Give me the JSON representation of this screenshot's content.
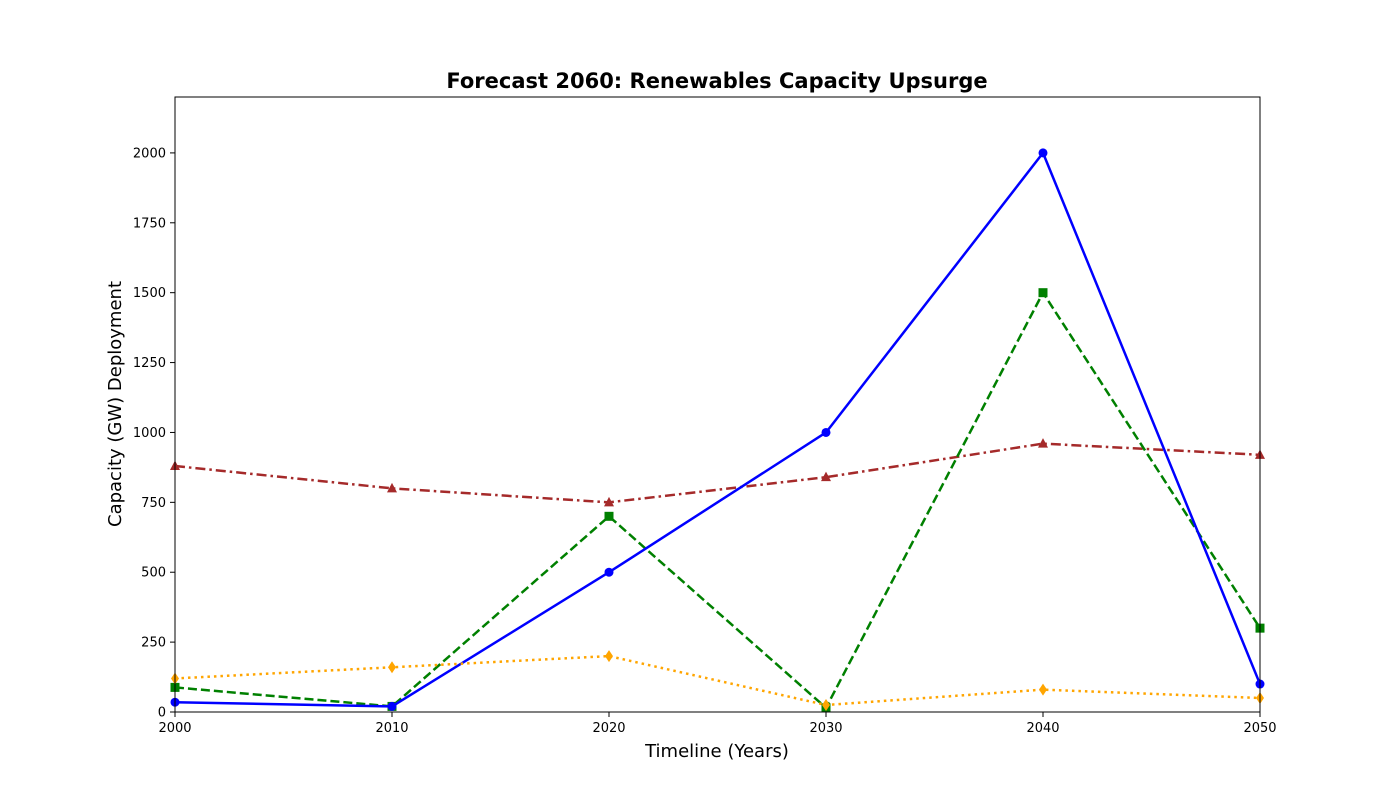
{
  "chart_data": {
    "type": "line",
    "title": "Forecast 2060: Renewables Capacity Upsurge",
    "xlabel": "Timeline (Years)",
    "ylabel": "Capacity (GW) Deployment",
    "x": [
      2000,
      2010,
      2020,
      2030,
      2040,
      2050
    ],
    "xlim": [
      2000,
      2050
    ],
    "ylim": [
      0,
      2200
    ],
    "xticks": [
      "2000",
      "2010",
      "2020",
      "2030",
      "2040",
      "2050"
    ],
    "yticks": [
      "0",
      "250",
      "500",
      "750",
      "1000",
      "1250",
      "1500",
      "1750",
      "2000"
    ],
    "grid": false,
    "legend": "none",
    "series": [
      {
        "values": [
          880,
          800,
          750,
          840,
          960,
          920
        ],
        "color": "#a52a2a",
        "linestyle": "dashdot",
        "marker": "triangle"
      },
      {
        "values": [
          88,
          20,
          700,
          15,
          1500,
          300
        ],
        "color": "#008000",
        "linestyle": "dashed",
        "marker": "square"
      },
      {
        "values": [
          35,
          20,
          500,
          1000,
          2000,
          100
        ],
        "color": "#0000ff",
        "linestyle": "solid",
        "marker": "circle"
      },
      {
        "values": [
          120,
          160,
          200,
          25,
          80,
          50
        ],
        "color": "#ffa500",
        "linestyle": "dotted",
        "marker": "diamond"
      }
    ]
  }
}
